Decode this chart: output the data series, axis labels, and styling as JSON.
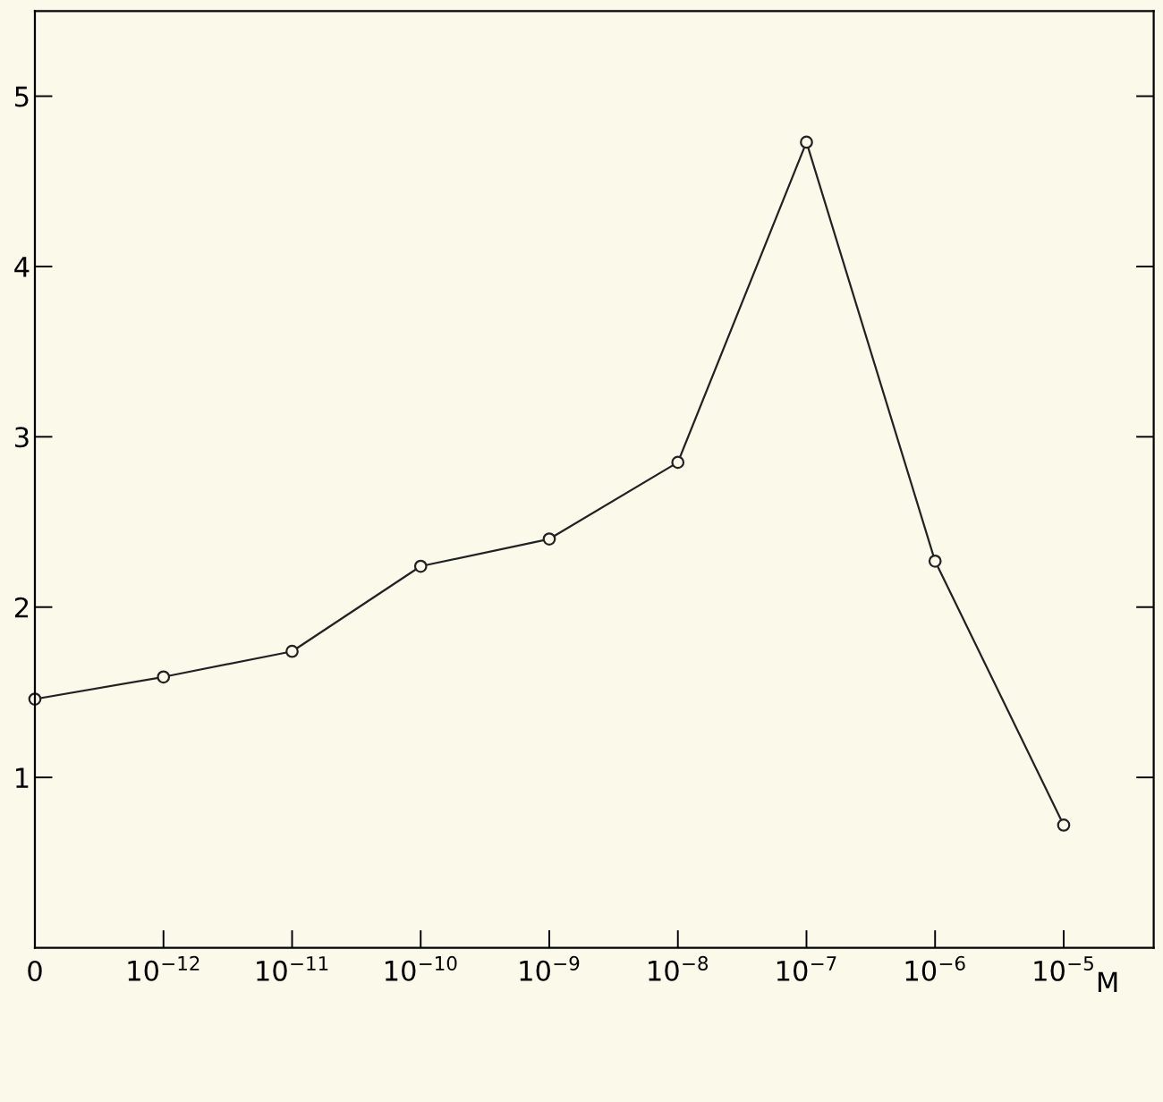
{
  "chart_data": {
    "type": "line",
    "xlabel": "M",
    "categories": [
      "0",
      "10$^{−12}$",
      "10$^{−11}$",
      "10$^{−10}$",
      "10$^{−9}$",
      "10$^{−8}$",
      "10$^{−7}$",
      "10$^{−6}$",
      "10$^{−5}$"
    ],
    "series": [
      {
        "color": "#222222",
        "values": [
          1.46,
          1.59,
          1.74,
          2.24,
          2.4,
          2.85,
          4.73,
          2.27,
          0.72
        ]
      }
    ],
    "ylim": [
      0,
      5.5
    ],
    "yticks": [
      1,
      2,
      3,
      4,
      5
    ],
    "marker": "circle",
    "line_style": "solid",
    "grid": false,
    "legend": false
  }
}
